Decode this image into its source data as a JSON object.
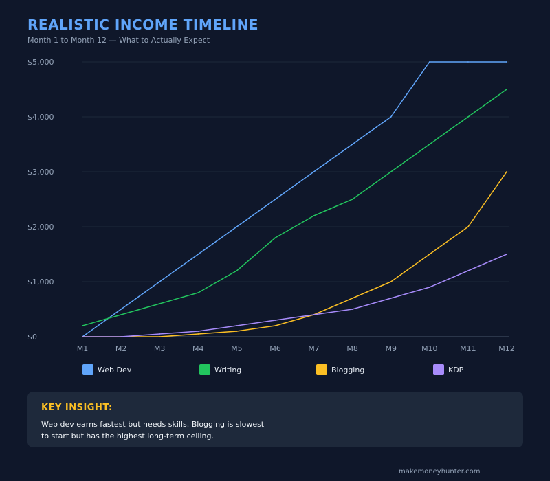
{
  "header": {
    "title": "REALISTIC INCOME TIMELINE",
    "subtitle": "Month 1 to Month 12 — What to Actually Expect"
  },
  "chart_data": {
    "type": "line",
    "title": "REALISTIC INCOME TIMELINE",
    "subtitle": "Month 1 to Month 12 — What to Actually Expect",
    "x": [
      "M1",
      "M2",
      "M3",
      "M4",
      "M5",
      "M6",
      "M7",
      "M8",
      "M9",
      "M10",
      "M11",
      "M12"
    ],
    "yticks": [
      "$0",
      "$1,000",
      "$2,000",
      "$3,000",
      "$4,000",
      "$5,000"
    ],
    "ytick_values": [
      0,
      1000,
      2000,
      3000,
      4000,
      5000
    ],
    "ylim": [
      0,
      5000
    ],
    "grid": true,
    "legend_position": "bottom",
    "series": [
      {
        "name": "Web Dev",
        "color": "#60a5fa",
        "values": [
          0,
          500,
          1000,
          1500,
          2000,
          2500,
          3000,
          3500,
          4000,
          5000,
          5000,
          5000
        ]
      },
      {
        "name": "Writing",
        "color": "#22c55e",
        "values": [
          200,
          400,
          600,
          800,
          1200,
          1800,
          2200,
          2500,
          3000,
          3500,
          4000,
          4500
        ]
      },
      {
        "name": "Blogging",
        "color": "#fbbf24",
        "values": [
          0,
          0,
          0,
          50,
          100,
          200,
          400,
          700,
          1000,
          1500,
          2000,
          3000
        ]
      },
      {
        "name": "KDP",
        "color": "#a78bfa",
        "values": [
          0,
          0,
          50,
          100,
          200,
          300,
          400,
          500,
          700,
          900,
          1200,
          1500
        ]
      }
    ]
  },
  "insight": {
    "heading": "KEY INSIGHT:",
    "line1": "Web dev earns fastest but needs skills. Blogging is slowest",
    "line2": "to start but has the highest long-term ceiling."
  },
  "footer": "makemoneyhunter.com"
}
